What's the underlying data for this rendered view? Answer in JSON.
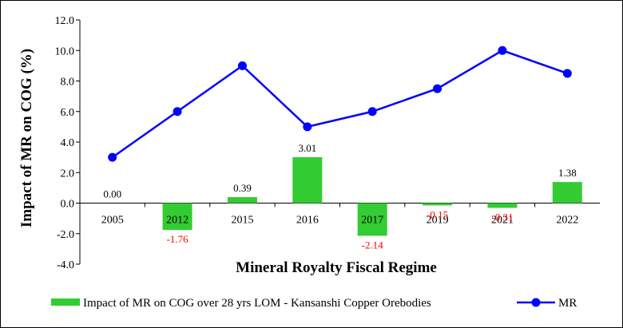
{
  "chart_data": {
    "type": "bar+line",
    "categories": [
      "2005",
      "2012",
      "2015",
      "2016",
      "2017",
      "2019",
      "2021",
      "2022"
    ],
    "series": [
      {
        "name": "Impact of MR on COG over 28 yrs LOM - Kansanshi Copper Orebodies",
        "type": "bar",
        "values": [
          0.0,
          -1.76,
          0.39,
          3.01,
          -2.14,
          -0.15,
          -0.31,
          1.38
        ],
        "labels": [
          "0.00",
          "-1.76",
          "0.39",
          "3.01",
          "-2.14",
          "-0.15",
          "-0.31",
          "1.38"
        ],
        "color": "#33cc33"
      },
      {
        "name": "MR",
        "type": "line",
        "values": [
          3,
          6,
          9,
          5,
          6,
          7.5,
          10,
          8.5
        ],
        "color": "#0000ff"
      }
    ],
    "title": "",
    "xlabel": "Mineral Royalty Fiscal Regime",
    "ylabel": "Impact of MR on COG (%)",
    "ylim": [
      -4.0,
      12.0
    ],
    "yticks": [
      "12.0",
      "10.0",
      "8.0",
      "6.0",
      "4.0",
      "2.0",
      "0.0",
      "-2.0",
      "-4.0"
    ],
    "grid": false,
    "legend": "bottom",
    "colors": {
      "positive_label": "#000000",
      "negative_label": "#ff0000"
    }
  }
}
